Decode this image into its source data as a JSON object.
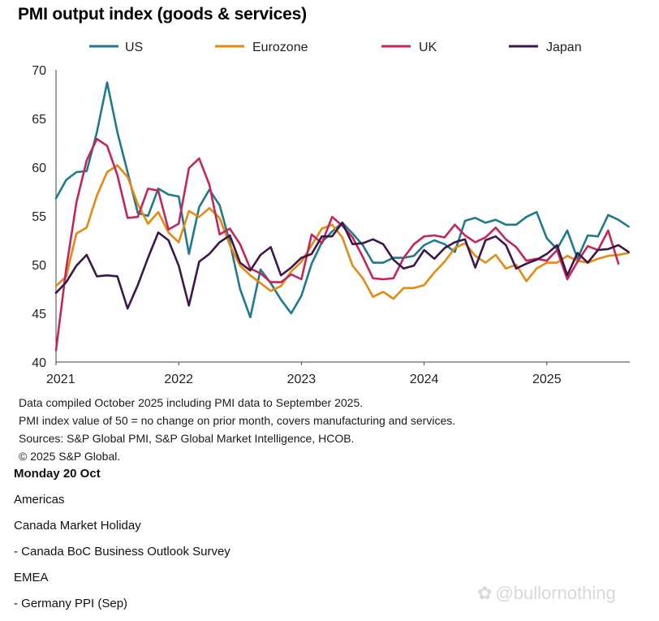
{
  "chart_data": {
    "type": "line",
    "title": "PMI output index (goods & services)",
    "xlabel": "",
    "ylabel": "",
    "ylim": [
      40,
      70
    ],
    "yticks": [
      40,
      45,
      50,
      55,
      60,
      65,
      70
    ],
    "xticks": [
      {
        "label": "2021",
        "x": 0
      },
      {
        "label": "2022",
        "x": 12
      },
      {
        "label": "2023",
        "x": 24
      },
      {
        "label": "2024",
        "x": 36
      },
      {
        "label": "2025",
        "x": 48
      }
    ],
    "x_unit": "months since Jan 2021",
    "legend_position": "top",
    "series": [
      {
        "name": "US",
        "color": "#1f7a8c",
        "values": [
          56.8,
          58.7,
          59.5,
          59.6,
          63.6,
          68.7,
          63.6,
          59.5,
          55.3,
          55.0,
          57.8,
          57.2,
          57.0,
          51.1,
          55.9,
          57.7,
          56.1,
          52.3,
          47.5,
          44.6,
          49.5,
          48.1,
          46.4,
          45.0,
          46.8,
          50.1,
          52.3,
          53.4,
          54.3,
          53.2,
          52.0,
          50.2,
          50.2,
          50.7,
          50.7,
          50.9,
          52.0,
          52.5,
          52.1,
          51.3,
          54.5,
          54.8,
          54.3,
          54.6,
          54.1,
          54.1,
          54.9,
          55.4,
          52.7,
          51.6,
          53.5,
          50.6,
          53.0,
          52.9,
          55.1,
          54.6,
          53.9
        ]
      },
      {
        "name": "Eurozone",
        "color": "#e8890f",
        "values": [
          47.8,
          48.8,
          53.2,
          53.8,
          57.1,
          59.5,
          60.2,
          59.0,
          56.2,
          54.2,
          55.4,
          53.3,
          52.3,
          55.5,
          54.9,
          55.8,
          54.8,
          52.0,
          49.9,
          48.9,
          48.1,
          47.3,
          47.8,
          49.3,
          50.3,
          52.0,
          53.7,
          54.1,
          52.8,
          49.9,
          48.6,
          46.7,
          47.2,
          46.5,
          47.6,
          47.6,
          47.9,
          49.2,
          50.3,
          51.7,
          52.2,
          50.9,
          50.2,
          51.0,
          49.6,
          50.0,
          48.3,
          49.6,
          50.2,
          50.2,
          50.9,
          50.4,
          50.2,
          50.6,
          50.9,
          51.0,
          51.2
        ]
      },
      {
        "name": "UK",
        "color": "#c6245c",
        "values": [
          41.2,
          49.6,
          56.4,
          60.7,
          62.9,
          62.2,
          59.2,
          54.8,
          54.9,
          57.8,
          57.6,
          53.6,
          54.2,
          59.9,
          60.9,
          58.2,
          53.1,
          53.7,
          52.1,
          49.6,
          49.1,
          48.2,
          48.2,
          49.0,
          48.5,
          53.1,
          52.2,
          54.9,
          54.0,
          52.8,
          50.8,
          48.6,
          48.5,
          48.6,
          50.7,
          52.1,
          52.9,
          53.0,
          52.8,
          54.1,
          53.0,
          52.3,
          52.8,
          53.8,
          52.6,
          51.8,
          50.4,
          50.6,
          50.4,
          51.5,
          48.5,
          50.3,
          51.9,
          51.5,
          53.5,
          50.1
        ]
      },
      {
        "name": "Japan",
        "color": "#3d1749",
        "values": [
          47.1,
          48.2,
          49.9,
          51.0,
          48.8,
          48.9,
          48.8,
          45.5,
          47.9,
          50.7,
          53.3,
          52.5,
          49.9,
          45.8,
          50.3,
          51.1,
          52.3,
          53.0,
          50.2,
          49.4,
          51.0,
          51.8,
          48.9,
          49.7,
          50.7,
          51.1,
          52.9,
          52.9,
          54.3,
          52.1,
          52.2,
          52.6,
          52.1,
          50.5,
          49.6,
          49.9,
          51.5,
          50.6,
          51.7,
          52.3,
          52.6,
          49.7,
          52.5,
          52.9,
          52.0,
          49.6,
          50.1,
          50.5,
          51.1,
          52.0,
          48.9,
          51.2,
          50.2,
          51.5,
          51.6,
          52.0,
          51.3
        ]
      }
    ]
  },
  "notes": [
    "Data compiled October 2025 including PMI data to September 2025.",
    "PMI index value of 50 = no change on prior month, covers manufacturing and services.",
    "Sources: S&P Global PMI, S&P Global Market Intelligence, HCOB.",
    "© 2025 S&P Global."
  ],
  "events": {
    "day": "Monday 20 Oct",
    "lines": [
      "Americas",
      "Canada Market Holiday",
      "- Canada BoC Business Outlook Survey",
      "EMEA",
      "- Germany PPI (Sep)"
    ]
  },
  "watermark": {
    "text": "@bullornothing",
    "icon": "weibo-logo-icon"
  }
}
